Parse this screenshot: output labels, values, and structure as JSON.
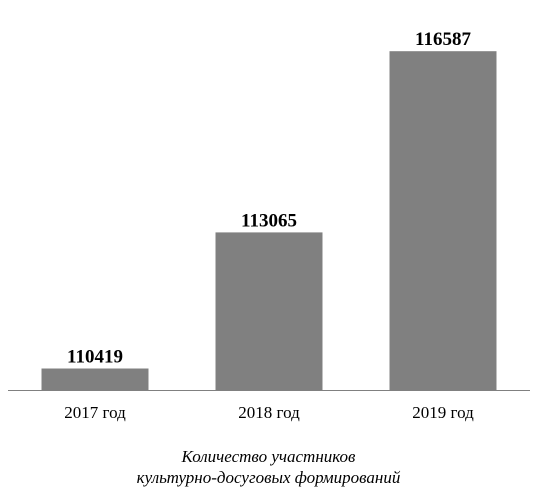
{
  "chart_data": {
    "type": "bar",
    "categories": [
      "2017 год",
      "2018 год",
      "2019 год"
    ],
    "values": [
      110419,
      113065,
      116587
    ],
    "ylim": [
      110000,
      117000
    ],
    "grid": false,
    "legend": "none",
    "caption_lines": [
      "Количество участников",
      "культурно-досуговых формирований"
    ],
    "colors": {
      "bar": "#808080",
      "axis": "#808080",
      "text": "#000000"
    }
  }
}
